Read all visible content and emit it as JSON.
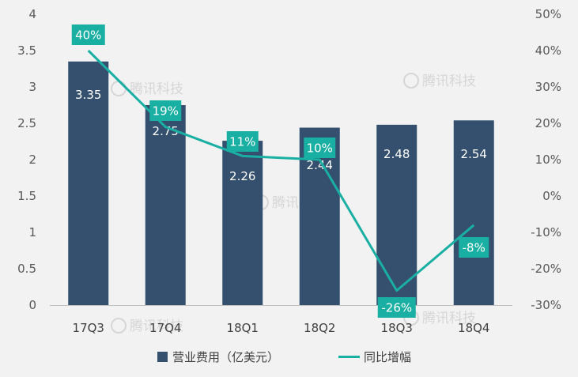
{
  "chart_data": {
    "type": "bar",
    "categories": [
      "17Q3",
      "17Q4",
      "18Q1",
      "18Q2",
      "18Q3",
      "18Q4"
    ],
    "series": [
      {
        "name": "营业费用（亿美元）",
        "type": "bar",
        "axis": "left",
        "values": [
          3.35,
          2.75,
          2.26,
          2.44,
          2.48,
          2.54
        ],
        "labels": [
          "3.35",
          "2.75",
          "2.26",
          "2.44",
          "2.48",
          "2.54"
        ],
        "color": "#34506e"
      },
      {
        "name": "同比增幅",
        "type": "line",
        "axis": "right",
        "values": [
          40,
          19,
          11,
          10,
          -26,
          -8
        ],
        "labels": [
          "40%",
          "19%",
          "11%",
          "10%",
          "-26%",
          "-8%"
        ],
        "color": "#1aafa3"
      }
    ],
    "y_left": {
      "min": 0,
      "max": 4,
      "ticks": [
        0,
        0.5,
        1,
        1.5,
        2,
        2.5,
        3,
        3.5,
        4
      ],
      "tick_labels": [
        "0",
        "0.5",
        "1",
        "1.5",
        "2",
        "2.5",
        "3",
        "3.5",
        "4"
      ]
    },
    "y_right": {
      "min": -30,
      "max": 50,
      "ticks": [
        -30,
        -20,
        -10,
        0,
        10,
        20,
        30,
        40,
        50
      ],
      "tick_labels": [
        "-30%",
        "-20%",
        "-10%",
        "0%",
        "10%",
        "20%",
        "30%",
        "40%",
        "50%"
      ]
    },
    "legend_position": "bottom",
    "grid": false
  },
  "watermark": "腾讯科技",
  "colors": {
    "background": "#f2f2f2",
    "bar": "#34506e",
    "line": "#1aafa3",
    "label_box": "#1aafa3"
  }
}
